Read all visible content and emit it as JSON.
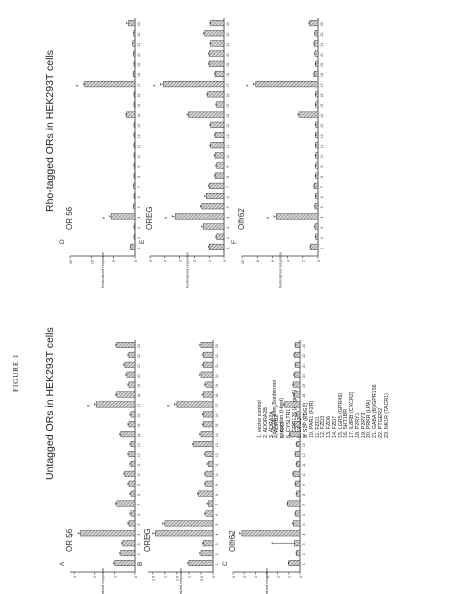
{
  "figure": {
    "label": "FIGURE 1",
    "left_title": "Untagged ORs in HEK293T cells",
    "right_title": "Rho-tagged ORs in HEK293T cells",
    "ylabel": "Normalized response",
    "significance_marker": "*",
    "footnote_line1": "* p<0.05 after Bonferroni",
    "footnote_line2": "correction (t-test)"
  },
  "legend": {
    "items": [
      "1. vector control",
      "2. ADORA2B",
      "3. ADRA2A",
      "4. ADRB2",
      "5. AR3",
      "6. CYSLTR1",
      "7. GPR126 (Adgrg6)",
      "8. DRD2",
      "9. S1P (EDG1)",
      "10. PAR1 (F2R)",
      "11. FZD1",
      "12. FZD3",
      "13. FZD6",
      "14. FZD7",
      "15. LGR5 (GPR49)",
      "16. 5HT1BR",
      "17. IL8RB (CXCR2)",
      "18. P2RY1",
      "19. P2RY2",
      "20. PRKR (LPA)",
      "21. GABA (B)/GPR156",
      "22. PTGER2",
      "23. NK1R (TACR1)"
    ]
  },
  "chart_data": [
    {
      "panel": "A",
      "type": "bar",
      "title": "OR 56",
      "ylabel": "Normalized response",
      "categories": [
        "1",
        "2",
        "3",
        "4",
        "5",
        "6",
        "7",
        "8",
        "9",
        "10",
        "11",
        "12",
        "13",
        "14",
        "15",
        "16",
        "17",
        "18",
        "19",
        "20",
        "21",
        "22",
        "23"
      ],
      "values": [
        1.0,
        0.7,
        0.6,
        2.7,
        0.3,
        0.2,
        0.9,
        0.2,
        0.3,
        0.5,
        0.2,
        0.3,
        0.2,
        0.7,
        0.3,
        0.2,
        1.9,
        0.9,
        0.3,
        0.4,
        0.5,
        0.3,
        0.9
      ],
      "errors": [
        0.05,
        0.05,
        0.05,
        0.1,
        0.05,
        0.05,
        0.05,
        0.05,
        0.05,
        0.05,
        0.05,
        0.05,
        0.05,
        0.05,
        0.05,
        0.05,
        0.1,
        0.05,
        0.05,
        0.05,
        0.05,
        0.05,
        0.05
      ],
      "significant": [
        "4",
        "17"
      ],
      "ylim": [
        0,
        3.2
      ],
      "yticks": [
        0.0,
        1.0,
        2.0,
        3.0
      ]
    },
    {
      "panel": "B",
      "type": "bar",
      "title": "OREG",
      "ylabel": "Normalized response",
      "categories": [
        "1",
        "2",
        "3",
        "4",
        "5",
        "6",
        "7",
        "8",
        "9",
        "10",
        "11",
        "12",
        "13",
        "14",
        "15",
        "16",
        "17",
        "18",
        "19",
        "20",
        "21",
        "22",
        "23"
      ],
      "values": [
        1.0,
        0.5,
        0.4,
        2.4,
        2.0,
        0.3,
        0.2,
        0.6,
        0.3,
        0.3,
        0.2,
        0.3,
        0.8,
        0.5,
        0.4,
        0.4,
        1.5,
        0.4,
        0.3,
        0.5,
        0.4,
        0.4,
        0.5
      ],
      "errors": [
        0.05,
        0.05,
        0.05,
        0.1,
        0.1,
        0.05,
        0.05,
        0.05,
        0.05,
        0.05,
        0.05,
        0.05,
        0.05,
        0.05,
        0.05,
        0.05,
        0.1,
        0.05,
        0.05,
        0.05,
        0.05,
        0.05,
        0.05
      ],
      "significant": [
        "4",
        "17"
      ],
      "ylim": [
        0,
        2.7
      ],
      "yticks": [
        0.0,
        0.5,
        1.0,
        1.5,
        2.0,
        2.5
      ]
    },
    {
      "panel": "C",
      "type": "bar",
      "title": "Olfr62",
      "ylabel": "Normalized response",
      "categories": [
        "1",
        "2",
        "3",
        "4",
        "5",
        "6",
        "7",
        "8",
        "9",
        "10",
        "11",
        "12",
        "13",
        "14",
        "15",
        "16",
        "17",
        "18",
        "19",
        "20",
        "21",
        "22",
        "23"
      ],
      "values": [
        1.0,
        0.3,
        0.5,
        5.2,
        0.6,
        0.4,
        1.1,
        0.3,
        0.4,
        0.6,
        0.3,
        0.4,
        0.3,
        0.9,
        0.5,
        0.3,
        1.4,
        0.5,
        0.6,
        0.5,
        0.4,
        0.5,
        0.4
      ],
      "errors": [
        0.05,
        0.05,
        2.0,
        0.2,
        0.1,
        0.05,
        0.05,
        0.05,
        0.05,
        0.05,
        0.05,
        0.05,
        0.05,
        0.05,
        0.05,
        0.05,
        0.1,
        0.05,
        0.05,
        0.05,
        0.05,
        0.05,
        0.05
      ],
      "significant": [
        "4",
        "17"
      ],
      "ylim": [
        0,
        6.0
      ],
      "yticks": [
        0,
        1,
        2,
        3,
        4,
        5,
        6
      ]
    },
    {
      "panel": "D",
      "type": "bar",
      "title": "OR 56",
      "ylabel": "Normalized response",
      "categories": [
        "1",
        "2",
        "3",
        "4",
        "5",
        "6",
        "7",
        "8",
        "9",
        "10",
        "11",
        "12",
        "13",
        "14",
        "15",
        "16",
        "17",
        "18",
        "19",
        "20",
        "21",
        "22",
        "23"
      ],
      "values": [
        1.0,
        0.2,
        0.2,
        5.5,
        0.3,
        0.2,
        0.3,
        0.2,
        0.2,
        0.2,
        0.2,
        0.2,
        0.2,
        2.0,
        0.2,
        0.2,
        11.6,
        0.4,
        0.2,
        0.3,
        0.5,
        0.3,
        1.5
      ],
      "errors": [
        0.05,
        0.05,
        0.05,
        0.3,
        0.05,
        0.05,
        0.05,
        0.05,
        0.05,
        0.05,
        0.05,
        0.05,
        0.05,
        0.1,
        0.05,
        0.05,
        0.3,
        0.05,
        0.05,
        0.05,
        0.05,
        0.05,
        0.5
      ],
      "significant": [
        "4",
        "17"
      ],
      "ylim": [
        0,
        15.0
      ],
      "yticks": [
        0.0,
        5.0,
        10.0,
        15.0
      ]
    },
    {
      "panel": "E",
      "type": "bar",
      "title": "OREG",
      "ylabel": "Normalized response",
      "categories": [
        "1",
        "2",
        "3",
        "4",
        "5",
        "6",
        "7",
        "8",
        "9",
        "10",
        "11",
        "12",
        "13",
        "14",
        "15",
        "16",
        "17",
        "18",
        "19",
        "20",
        "21",
        "22",
        "23"
      ],
      "values": [
        1.0,
        0.5,
        1.4,
        3.3,
        1.5,
        1.2,
        1.0,
        0.6,
        0.5,
        0.6,
        0.9,
        0.6,
        0.9,
        2.4,
        0.5,
        1.1,
        4.1,
        0.6,
        1.0,
        1.0,
        0.9,
        1.3,
        0.9
      ],
      "errors": [
        0.05,
        0.05,
        0.1,
        0.2,
        0.1,
        0.1,
        0.05,
        0.05,
        0.05,
        0.05,
        0.05,
        0.05,
        0.05,
        0.1,
        0.05,
        0.05,
        0.2,
        0.05,
        0.05,
        0.05,
        0.05,
        0.1,
        0.05
      ],
      "significant": [
        "4",
        "17"
      ],
      "ylim": [
        0,
        5.0
      ],
      "yticks": [
        0.0,
        1.0,
        2.0,
        3.0,
        4.0,
        5.0
      ]
    },
    {
      "panel": "F",
      "type": "bar",
      "title": "Olfr62",
      "ylabel": "Normalized response",
      "categories": [
        "1",
        "2",
        "3",
        "4",
        "5",
        "6",
        "7",
        "8",
        "9",
        "10",
        "11",
        "12",
        "13",
        "14",
        "15",
        "16",
        "17",
        "18",
        "19",
        "20",
        "21",
        "22",
        "23"
      ],
      "values": [
        1.0,
        0.3,
        0.4,
        5.5,
        0.4,
        0.3,
        0.5,
        0.3,
        0.3,
        0.3,
        0.3,
        0.3,
        0.3,
        2.5,
        0.3,
        0.3,
        8.2,
        0.5,
        0.3,
        0.4,
        0.5,
        0.4,
        1.1
      ],
      "errors": [
        0.05,
        0.05,
        0.05,
        0.3,
        0.05,
        0.05,
        0.05,
        0.05,
        0.05,
        0.05,
        0.05,
        0.05,
        0.05,
        0.15,
        0.05,
        0.05,
        0.3,
        0.05,
        0.05,
        0.05,
        0.05,
        0.05,
        0.1
      ],
      "significant": [
        "4",
        "17"
      ],
      "ylim": [
        0,
        10.0
      ],
      "yticks": [
        0,
        2,
        4,
        6,
        8,
        10
      ]
    }
  ]
}
